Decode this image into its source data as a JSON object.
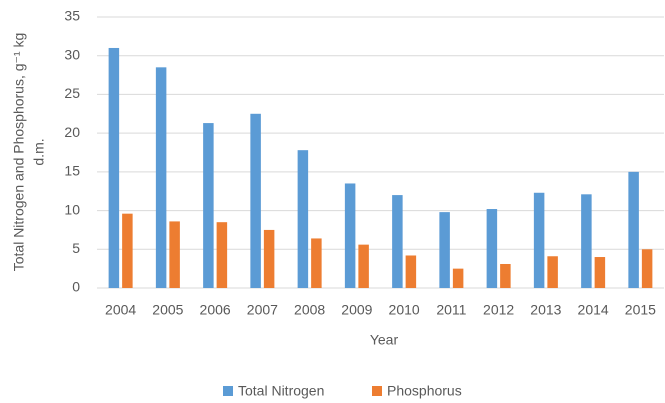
{
  "chart_data": {
    "type": "bar",
    "categories": [
      "2004",
      "2005",
      "2006",
      "2007",
      "2008",
      "2009",
      "2010",
      "2011",
      "2012",
      "2013",
      "2014",
      "2015"
    ],
    "series": [
      {
        "name": "Total Nitrogen",
        "color": "#5b9bd5",
        "values": [
          31,
          28.5,
          21.3,
          22.5,
          17.8,
          13.5,
          12,
          9.8,
          10.2,
          12.3,
          12.1,
          15
        ]
      },
      {
        "name": "Phosphorus",
        "color": "#ed7d31",
        "values": [
          9.6,
          8.6,
          8.5,
          7.5,
          6.4,
          5.6,
          4.2,
          2.5,
          3.1,
          4.1,
          4.0,
          5.0
        ]
      }
    ],
    "xlabel": "Year",
    "ylabel": [
      "Total Nitrogen and Phosphorus, g⁻¹ kg",
      "d.m."
    ],
    "ylim": [
      0,
      35
    ],
    "yticks": [
      0,
      5,
      10,
      15,
      20,
      25,
      30,
      35
    ],
    "grid": true,
    "legend": "bottom"
  }
}
